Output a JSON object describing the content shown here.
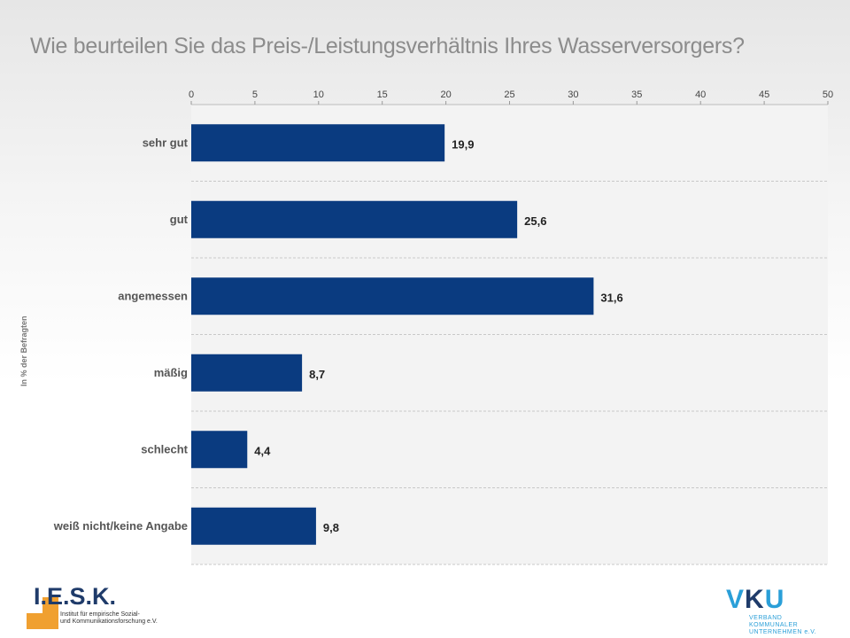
{
  "title": "Wie beurteilen Sie das Preis-/Leistungsverhältnis Ihres Wasserversorgers?",
  "colors": {
    "bar": "#0a3b80",
    "grid": "#c8c8c8",
    "label": "#555555",
    "value": "#222222"
  },
  "chart_data": {
    "type": "bar",
    "orientation": "horizontal",
    "title": "Wie beurteilen Sie das Preis-/Leistungsverhältnis Ihres Wasserversorgers?",
    "ylabel": "In % der Befragten",
    "xlim": [
      0,
      50
    ],
    "xticks": [
      "0",
      "5",
      "10",
      "15",
      "20",
      "25",
      "30",
      "35",
      "40",
      "45",
      "50"
    ],
    "categories": [
      "sehr gut",
      "gut",
      "angemessen",
      "mäßig",
      "schlecht",
      "weiß nicht/keine Angabe"
    ],
    "values": [
      19.9,
      25.6,
      31.6,
      8.7,
      4.4,
      9.8
    ],
    "value_labels": [
      "19,9",
      "25,6",
      "31,6",
      "8,7",
      "4,4",
      "9,8"
    ]
  },
  "logos": {
    "iesk_name": "I.E.S.K.",
    "iesk_sub1": "Institut für empirische Sozial-",
    "iesk_sub2": "und Kommunikationsforschung e.V.",
    "vku_v": "V",
    "vku_k": "K",
    "vku_u": "U",
    "vku_sub1": "VERBAND KOMMUNALER",
    "vku_sub2": "UNTERNEHMEN e.V."
  }
}
